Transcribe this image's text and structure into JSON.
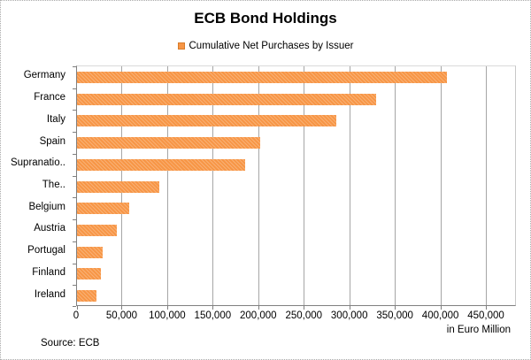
{
  "title": "ECB Bond Holdings",
  "legend": {
    "label": "Cumulative Net Purchases by Issuer",
    "marker_color": "#f79646"
  },
  "chart_data": {
    "type": "bar",
    "orientation": "horizontal",
    "title": "ECB Bond Holdings",
    "legend_entries": [
      "Cumulative Net Purchases by Issuer"
    ],
    "legend_position": "top-center",
    "categories": [
      "Germany",
      "France",
      "Italy",
      "Spain",
      "Supranatio..",
      "The..",
      "Belgium",
      "Austria",
      "Portugal",
      "Finland",
      "Ireland"
    ],
    "values": [
      406000,
      328000,
      285000,
      201000,
      185000,
      90000,
      57000,
      44000,
      28500,
      26000,
      21500
    ],
    "x_ticks": [
      0,
      50000,
      100000,
      150000,
      200000,
      250000,
      300000,
      350000,
      400000,
      450000
    ],
    "x_tick_labels": [
      "0",
      "50,000",
      "100,000",
      "150,000",
      "200,000",
      "250,000",
      "300,000",
      "350,000",
      "400,000",
      "450,000"
    ],
    "xlim": [
      0,
      483000
    ],
    "xlabel": "in Euro Million",
    "grid": true,
    "bar_color": "#f79646",
    "gridline_color": "#a6a6a6",
    "axis_color": "#808080"
  },
  "footer": {
    "units_label": "in Euro Million",
    "source": "Source: ECB"
  }
}
